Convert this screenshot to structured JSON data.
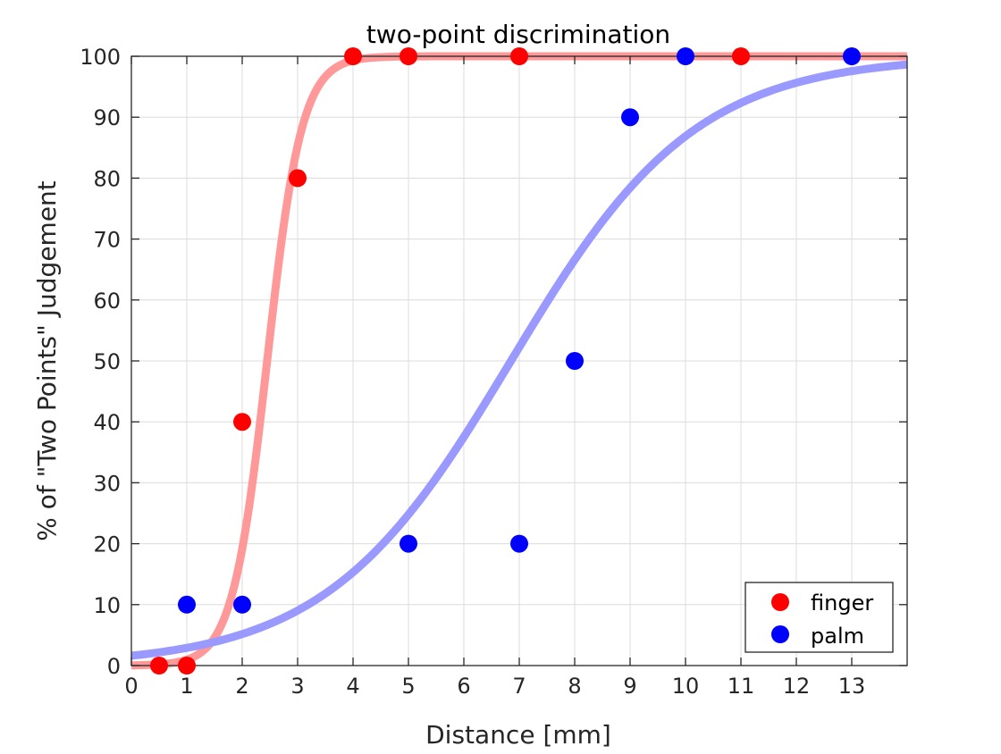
{
  "chart_data": {
    "type": "scatter",
    "title": "two-point discrimination",
    "xlabel": "Distance [mm]",
    "ylabel": "% of \"Two Points\" Judgement",
    "xlim": [
      0,
      14
    ],
    "ylim": [
      0,
      100
    ],
    "xticks": [
      0,
      1,
      2,
      3,
      4,
      5,
      6,
      7,
      8,
      9,
      10,
      11,
      12,
      13
    ],
    "yticks": [
      0,
      10,
      20,
      30,
      40,
      50,
      60,
      70,
      80,
      90,
      100
    ],
    "grid": true,
    "legend_position": "bottom-right",
    "series": [
      {
        "name": "finger",
        "marker_color": "#ff0000",
        "fit_color": "#ff9999",
        "points": [
          {
            "x": 0.5,
            "y": 0
          },
          {
            "x": 1,
            "y": 0
          },
          {
            "x": 2,
            "y": 40
          },
          {
            "x": 3,
            "y": 80
          },
          {
            "x": 4,
            "y": 100
          },
          {
            "x": 5,
            "y": 100
          },
          {
            "x": 7,
            "y": 100
          },
          {
            "x": 11,
            "y": 100
          }
        ],
        "fit": {
          "model": "logistic",
          "midpoint": 2.45,
          "slope": 3.2,
          "max": 100
        }
      },
      {
        "name": "palm",
        "marker_color": "#0000ff",
        "fit_color": "#9999ff",
        "points": [
          {
            "x": 1,
            "y": 10
          },
          {
            "x": 2,
            "y": 10
          },
          {
            "x": 5,
            "y": 20
          },
          {
            "x": 7,
            "y": 20
          },
          {
            "x": 8,
            "y": 50
          },
          {
            "x": 9,
            "y": 90
          },
          {
            "x": 10,
            "y": 100
          },
          {
            "x": 13,
            "y": 100
          }
        ],
        "fit": {
          "model": "logistic",
          "midpoint": 6.85,
          "slope": 0.6,
          "max": 100
        }
      }
    ]
  }
}
